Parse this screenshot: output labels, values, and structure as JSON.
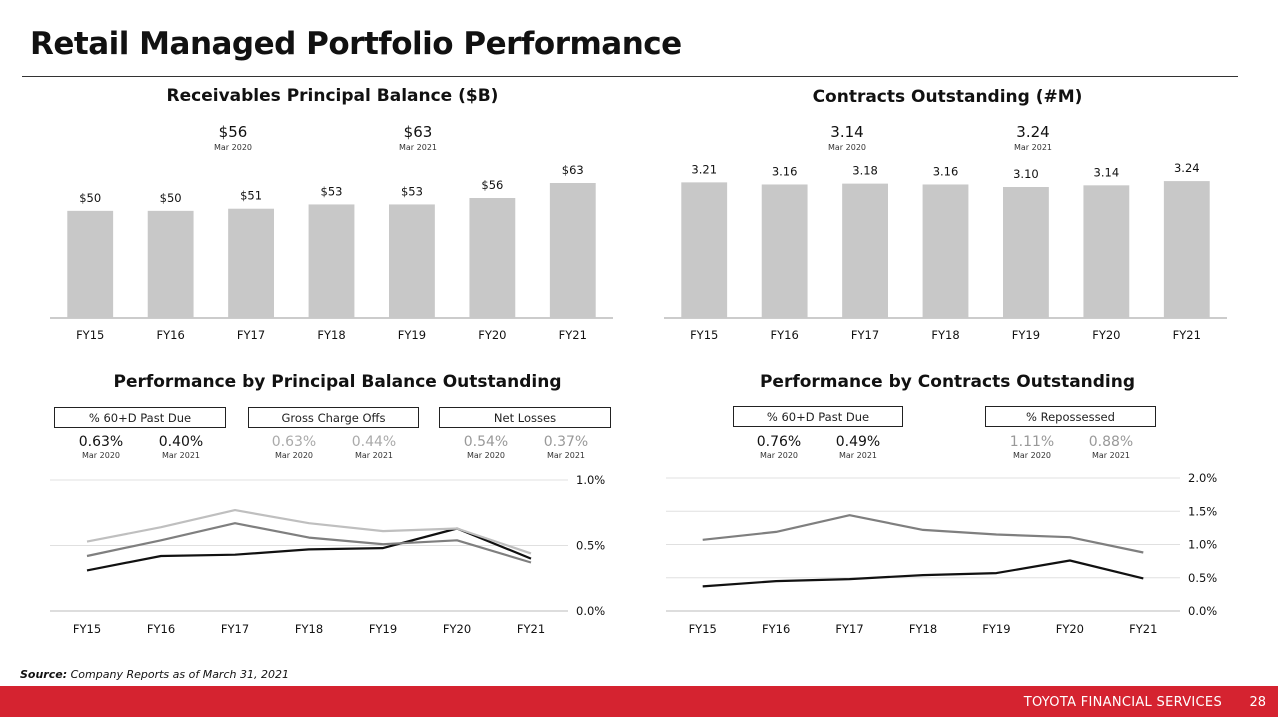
{
  "title": "Retail Managed Portfolio Performance",
  "source_label": "Source:",
  "source_text": "Company Reports as of March 31, 2021",
  "footer": {
    "brand": "TOYOTA FINANCIAL SERVICES",
    "page": "28"
  },
  "chart_data": [
    {
      "id": "receivables",
      "type": "bar",
      "title": "Receivables Principal Balance ($B)",
      "categories": [
        "FY15",
        "FY16",
        "FY17",
        "FY18",
        "FY19",
        "FY20",
        "FY21"
      ],
      "values": [
        50,
        50,
        51,
        53,
        53,
        56,
        63
      ],
      "labels": [
        "$50",
        "$50",
        "$51",
        "$53",
        "$53",
        "$56",
        "$63"
      ],
      "ylim": [
        0,
        70
      ],
      "color": "#c8c8c8",
      "highlights": [
        {
          "value": "$56",
          "date": "Mar 2020"
        },
        {
          "value": "$63",
          "date": "Mar 2021"
        }
      ]
    },
    {
      "id": "contracts",
      "type": "bar",
      "title": "Contracts Outstanding (#M)",
      "categories": [
        "FY15",
        "FY16",
        "FY17",
        "FY18",
        "FY19",
        "FY20",
        "FY21"
      ],
      "values": [
        3.21,
        3.16,
        3.18,
        3.16,
        3.1,
        3.14,
        3.24
      ],
      "labels": [
        "3.21",
        "3.16",
        "3.18",
        "3.16",
        "3.10",
        "3.14",
        "3.24"
      ],
      "ylim": [
        0,
        3.55
      ],
      "color": "#c8c8c8",
      "highlights": [
        {
          "value": "3.14",
          "date": "Mar 2020"
        },
        {
          "value": "3.24",
          "date": "Mar 2021"
        }
      ]
    },
    {
      "id": "perf_principal",
      "type": "line",
      "title": "Performance by  Principal Balance Outstanding",
      "categories": [
        "FY15",
        "FY16",
        "FY17",
        "FY18",
        "FY19",
        "FY20",
        "FY21"
      ],
      "ylim": [
        0,
        1.0
      ],
      "yticks": [
        "0.0%",
        "0.5%",
        "1.0%"
      ],
      "grid": true,
      "series": [
        {
          "name": "% 60+D Past Due",
          "color": "#111111",
          "values": [
            0.31,
            0.42,
            0.43,
            0.47,
            0.48,
            0.63,
            0.4
          ]
        },
        {
          "name": "Gross Charge Offs",
          "color": "#bfbfbf",
          "values": [
            0.53,
            0.64,
            0.77,
            0.67,
            0.61,
            0.63,
            0.44
          ]
        },
        {
          "name": "Net Losses",
          "color": "#7f7f7f",
          "values": [
            0.42,
            0.54,
            0.67,
            0.56,
            0.51,
            0.54,
            0.37
          ]
        }
      ],
      "metrics": [
        {
          "label": "% 60+D Past Due",
          "tone": "dark",
          "v1": "0.63%",
          "d1": "Mar 2020",
          "v2": "0.40%",
          "d2": "Mar 2021"
        },
        {
          "label": "Gross Charge Offs",
          "tone": "light",
          "v1": "0.63%",
          "d1": "Mar 2020",
          "v2": "0.44%",
          "d2": "Mar 2021"
        },
        {
          "label": "Net Losses",
          "tone": "mid",
          "v1": "0.54%",
          "d1": "Mar 2020",
          "v2": "0.37%",
          "d2": "Mar 2021"
        }
      ]
    },
    {
      "id": "perf_contracts",
      "type": "line",
      "title": "Performance by  Contracts Outstanding",
      "categories": [
        "FY15",
        "FY16",
        "FY17",
        "FY18",
        "FY19",
        "FY20",
        "FY21"
      ],
      "ylim": [
        0,
        2.0
      ],
      "yticks": [
        "0.0%",
        "0.5%",
        "1.0%",
        "1.5%",
        "2.0%"
      ],
      "grid": true,
      "series": [
        {
          "name": "% 60+D Past Due",
          "color": "#111111",
          "values": [
            0.37,
            0.45,
            0.48,
            0.54,
            0.57,
            0.76,
            0.49
          ]
        },
        {
          "name": "% Repossessed",
          "color": "#7f7f7f",
          "values": [
            1.07,
            1.19,
            1.44,
            1.22,
            1.15,
            1.11,
            0.88
          ]
        }
      ],
      "metrics": [
        {
          "label": "% 60+D Past Due",
          "tone": "dark",
          "v1": "0.76%",
          "d1": "Mar 2020",
          "v2": "0.49%",
          "d2": "Mar 2021"
        },
        {
          "label": "% Repossessed",
          "tone": "mid",
          "v1": "1.11%",
          "d1": "Mar 2020",
          "v2": "0.88%",
          "d2": "Mar 2021"
        }
      ]
    }
  ]
}
